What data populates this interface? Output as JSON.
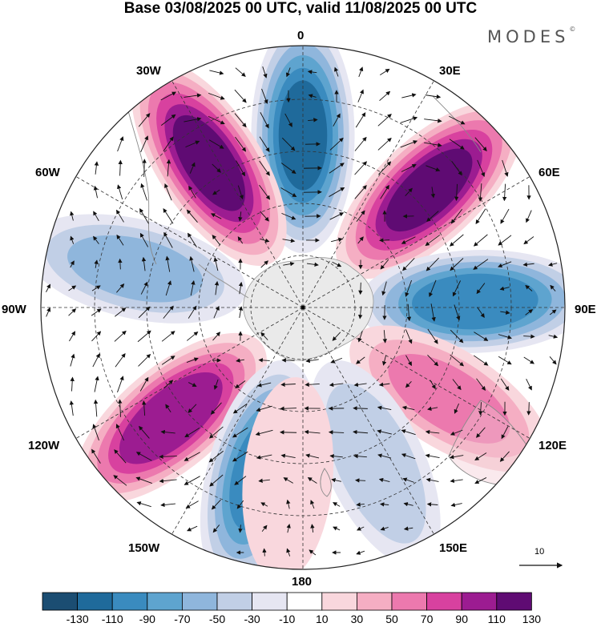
{
  "title": "Base 03/08/2025 00 UTC, valid 11/08/2025 00 UTC",
  "brand": "MODES",
  "brand_mark": "©",
  "longitude_labels": {
    "n": "0",
    "ne": "30E",
    "nee": "60E",
    "e": "90E",
    "see": "120E",
    "se": "150E",
    "s": "180",
    "sw": "150W",
    "sww": "120W",
    "w": "90W",
    "nww": "60W",
    "nw": "30W"
  },
  "reference_vector": "10",
  "colorbar": {
    "boundaries": [
      "-130",
      "-110",
      "-90",
      "-70",
      "-50",
      "-30",
      "-10",
      "10",
      "30",
      "50",
      "70",
      "90",
      "110",
      "130"
    ],
    "colors": [
      "#1b4d72",
      "#1f6a9b",
      "#3a8bbf",
      "#5ea4cf",
      "#8fb6dc",
      "#c1cfe6",
      "#e6e6f2",
      "#ffffff",
      "#f9d7dd",
      "#f5aec3",
      "#ec79ae",
      "#d8419f",
      "#9c1c91",
      "#5f0b73"
    ]
  },
  "map_data": {
    "projection": "south-polar-stereographic",
    "field": "anomaly",
    "anomaly_centers": [
      {
        "id": "center-0E",
        "lon_deg": 0,
        "value": -120
      },
      {
        "id": "center-30W",
        "lon_deg": -33,
        "value": 120
      },
      {
        "id": "center-45E",
        "lon_deg": 47,
        "value": 120
      },
      {
        "id": "center-75W",
        "lon_deg": -77,
        "value": -60
      },
      {
        "id": "center-90E",
        "lon_deg": 88,
        "value": -110
      },
      {
        "id": "center-130W",
        "lon_deg": -130,
        "value": 110
      },
      {
        "id": "center-120E",
        "lon_deg": 122,
        "value": 60
      },
      {
        "id": "center-165W",
        "lon_deg": -165,
        "value": -100
      },
      {
        "id": "center-155E",
        "lon_deg": 155,
        "value": -50
      },
      {
        "id": "center-170W",
        "lon_deg": -175,
        "value": 20
      }
    ]
  }
}
